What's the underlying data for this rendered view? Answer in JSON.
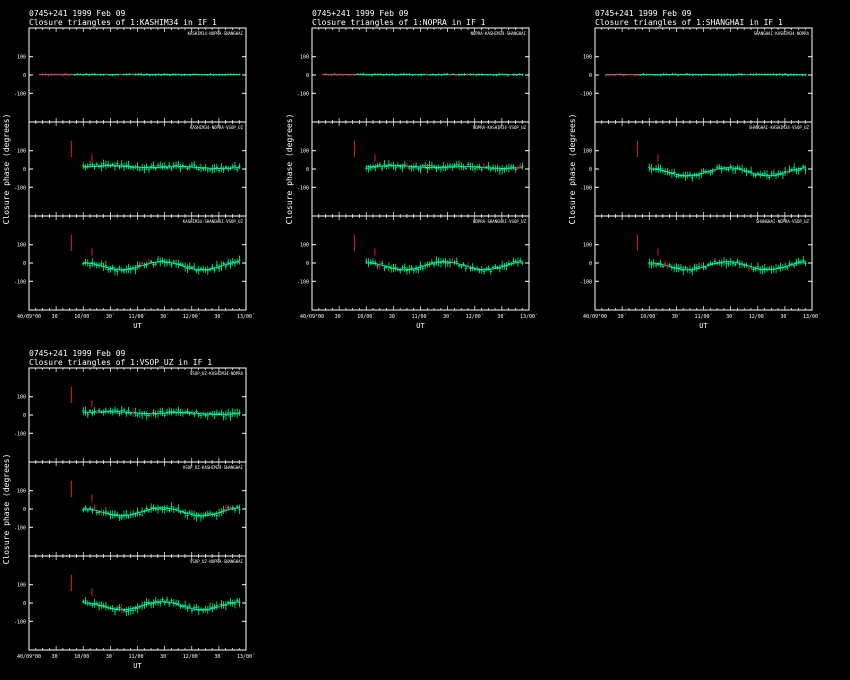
{
  "source": "0745+241",
  "date": "1999 Feb 09",
  "axis": {
    "ylabel": "Closure phase  (degrees)",
    "xlabel": "UT",
    "yticks": [
      100,
      0,
      -100
    ],
    "xticks": [
      "40/09°00",
      "30´",
      "10/00´",
      "30´",
      "11/00´",
      "30´",
      "12/00´",
      "30´",
      "13/00´"
    ],
    "ylim": [
      -180,
      180
    ]
  },
  "colors": {
    "background": "#000000",
    "frame": "#ffffff",
    "data": "#00ff80",
    "flagged": "#ff2020",
    "model": "#00e5ff"
  },
  "chart_data": [
    {
      "type": "scatter",
      "line1": "0745+241   1999 Feb 09",
      "line2": "Closure triangles of 1:KASHIM34 in IF 1",
      "xticks": [
        "40/09°00",
        "30´",
        "10/00´",
        "30´",
        "11/00´",
        "30´",
        "12/00´",
        "30´",
        "13/00´"
      ],
      "panels": [
        {
          "label": "KASHIM34-NOPRA-SHANGHAI",
          "pattern": "flat",
          "start": 0.05
        },
        {
          "label": "KASHIM34-NOPRA-VSOP_UZ",
          "pattern": "offset",
          "start": 0.25
        },
        {
          "label": "KASHIM34-SHANGHAI-VSOP_UZ",
          "pattern": "wave",
          "start": 0.25
        }
      ]
    },
    {
      "type": "scatter",
      "line1": "0745+241   1999 Feb 09",
      "line2": "Closure triangles of 1:NOPRA in IF 1",
      "xticks": [
        "40/09°00",
        "30´",
        "10/00´",
        "30´",
        "11/00´",
        "30´",
        "12/00´",
        "30´",
        "13/00´"
      ],
      "panels": [
        {
          "label": "NOPRA-KASHIM34-SHANGHAI",
          "pattern": "flat",
          "start": 0.05
        },
        {
          "label": "NOPRA-KASHIM34-VSOP_UZ",
          "pattern": "offset",
          "start": 0.25
        },
        {
          "label": "NOPRA-SHANGHAI-VSOP_UZ",
          "pattern": "wave",
          "start": 0.25
        }
      ]
    },
    {
      "type": "scatter",
      "line1": "0745+241   1999 Feb 09",
      "line2": "Closure triangles of 1:SHANGHAI in IF 1",
      "xticks": [
        "40/09°00",
        "30´",
        "10/00´",
        "30´",
        "11/00´",
        "30´",
        "12/00´",
        "30´",
        "13/00´"
      ],
      "panels": [
        {
          "label": "SHANGHAI-KASHIM34-NOPRA",
          "pattern": "flat",
          "start": 0.05
        },
        {
          "label": "SHANGHAI-KASHIM34-VSOP_UZ",
          "pattern": "wave",
          "start": 0.25
        },
        {
          "label": "SHANGHAI-NOPRA-VSOP_UZ",
          "pattern": "wave",
          "start": 0.25
        }
      ]
    },
    {
      "type": "scatter",
      "line1": "0745+241   1999 Feb 09",
      "line2": "Closure triangles of 1:VSOP_UZ in IF 1",
      "xticks": [
        "40/09°00",
        "30´",
        "10/00´",
        "30´",
        "11/00´",
        "30´",
        "12/00´",
        "30´",
        "13/00´"
      ],
      "panels": [
        {
          "label": "VSOP_UZ-KASHIM34-NOPRA",
          "pattern": "offset",
          "start": 0.25
        },
        {
          "label": "VSOP_UZ-KASHIM34-SHANGHAI",
          "pattern": "wave",
          "start": 0.25
        },
        {
          "label": "VSOP_UZ-NOPRA-SHANGHAI",
          "pattern": "wave",
          "start": 0.25
        }
      ]
    }
  ]
}
